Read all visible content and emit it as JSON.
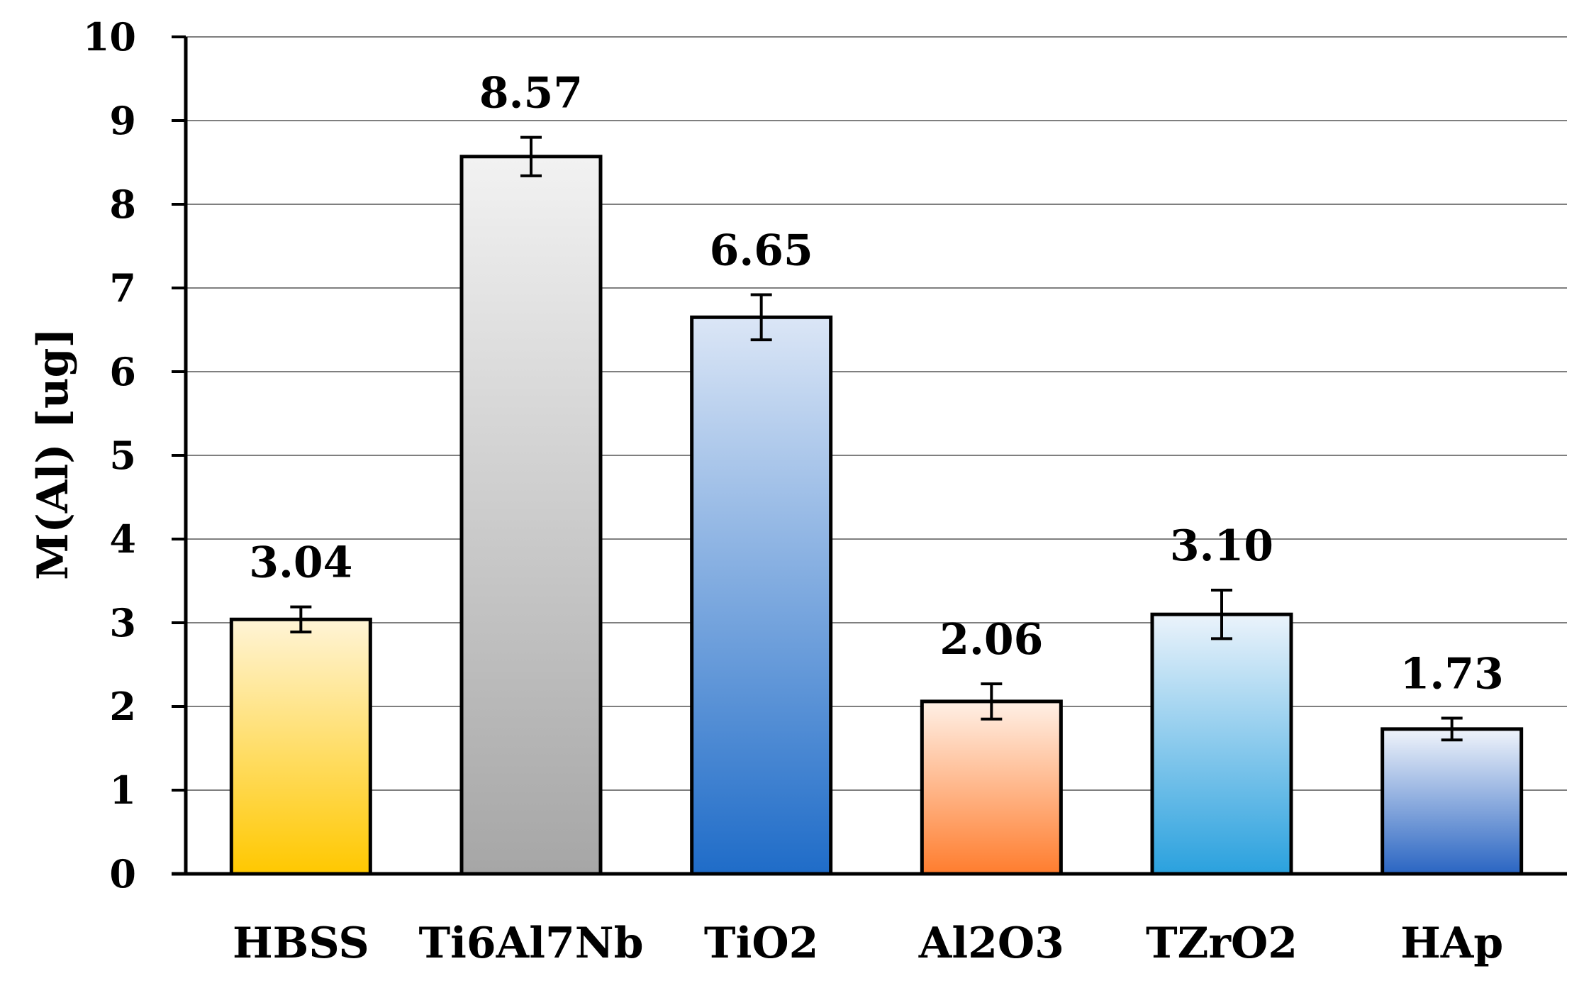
{
  "chart_data": {
    "type": "bar",
    "title": "",
    "xlabel": "",
    "ylabel": "M(Al) [ug]",
    "ylim": [
      0,
      10
    ],
    "yticks": [
      0,
      1,
      2,
      3,
      4,
      5,
      6,
      7,
      8,
      9,
      10
    ],
    "grid": true,
    "legend": "none",
    "categories": [
      "HBSS",
      "Ti6Al7Nb",
      "TiO2",
      "Al2O3",
      "TZrO2",
      "HAp"
    ],
    "values": [
      3.04,
      8.57,
      6.65,
      2.06,
      3.1,
      1.73
    ],
    "value_labels": [
      "3.04",
      "8.57",
      "6.65",
      "2.06",
      "3.10",
      "1.73"
    ],
    "errors": [
      0.15,
      0.23,
      0.27,
      0.21,
      0.29,
      0.13
    ],
    "bar_colors": [
      {
        "top": "#fff4d6",
        "bottom": "#ffc800"
      },
      {
        "top": "#f2f2f2",
        "bottom": "#a6a6a6"
      },
      {
        "top": "#dbe6f6",
        "bottom": "#1f6cc8"
      },
      {
        "top": "#fff0e6",
        "bottom": "#ff7d2e"
      },
      {
        "top": "#ebf3fb",
        "bottom": "#2aa1de"
      },
      {
        "top": "#f0f4fb",
        "bottom": "#2a65c2"
      }
    ]
  }
}
